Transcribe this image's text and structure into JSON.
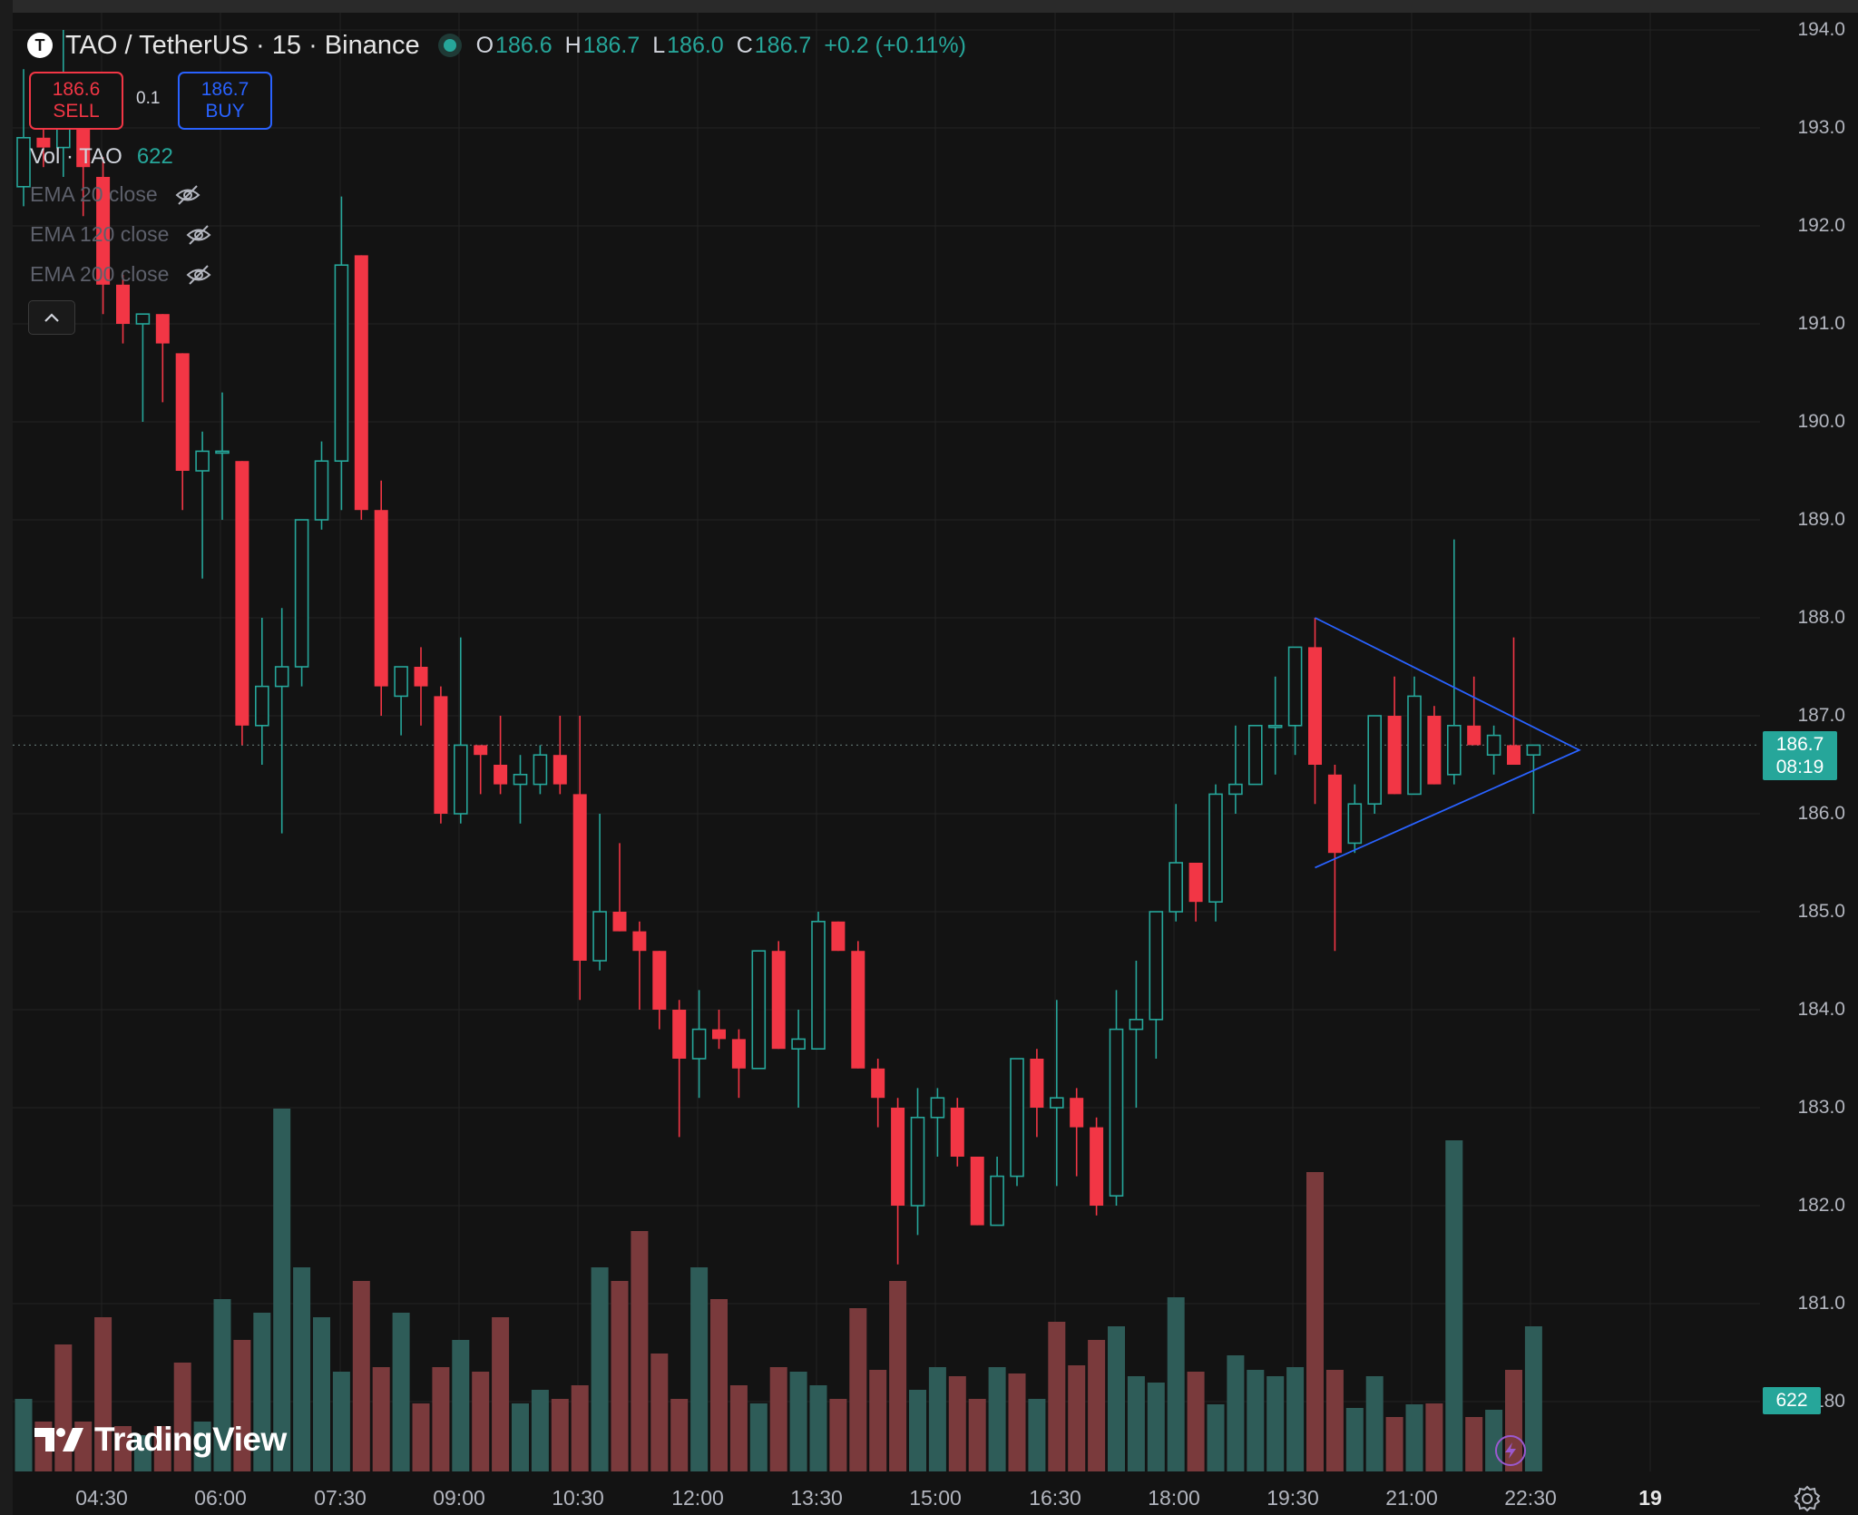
{
  "header": {
    "symbol_badge": "T",
    "symbol": "TAO / TetherUS · 15 · Binance",
    "o_label": "O",
    "o_value": "186.6",
    "h_label": "H",
    "h_value": "186.7",
    "l_label": "L",
    "l_value": "186.0",
    "c_label": "C",
    "c_value": "186.7",
    "change": "+0.2 (+0.11%)"
  },
  "trade": {
    "sell_price": "186.6",
    "sell_label": "SELL",
    "quantity": "0.1",
    "buy_price": "186.7",
    "buy_label": "BUY"
  },
  "legend": {
    "vol_label": "Vol · TAO",
    "vol_value": "622",
    "ema": [
      {
        "label": "EMA 20 close"
      },
      {
        "label": "EMA 120 close"
      },
      {
        "label": "EMA 200 close"
      }
    ]
  },
  "price_tag": {
    "price": "186.7",
    "countdown": "08:19"
  },
  "volume_tag": "622",
  "branding": "TradingView",
  "icons": {
    "symbol": "tao-logo-icon",
    "eye": "eye-crossed-icon",
    "collapse": "chevron-up-icon",
    "bolt": "lightning-icon",
    "settings": "gear-icon"
  },
  "colors": {
    "up": "#26a69a",
    "down": "#f23645",
    "drawing": "#2962ff",
    "background": "#131313"
  },
  "chart_data": {
    "type": "candlestick",
    "interval": "15",
    "y_ticks": [
      "194.0",
      "193.0",
      "192.0",
      "191.0",
      "190.0",
      "189.0",
      "188.0",
      "187.0",
      "186.0",
      "185.0",
      "184.0",
      "183.0",
      "182.0",
      "181.0",
      "180"
    ],
    "x_ticks": [
      "04:30",
      "06:00",
      "07:30",
      "09:00",
      "10:30",
      "12:00",
      "13:30",
      "15:00",
      "16:30",
      "18:00",
      "19:30",
      "21:00",
      "22:30",
      "19"
    ],
    "ylim": [
      179.8,
      194.3
    ],
    "last_price": 186.7,
    "candles": [
      {
        "o": 192.4,
        "h": 193.6,
        "l": 192.2,
        "c": 192.9
      },
      {
        "o": 192.9,
        "h": 193.3,
        "l": 192.6,
        "c": 192.8
      },
      {
        "o": 192.8,
        "h": 194.0,
        "l": 192.5,
        "c": 193.1
      },
      {
        "o": 193.1,
        "h": 193.3,
        "l": 192.1,
        "c": 192.6
      },
      {
        "o": 192.5,
        "h": 192.7,
        "l": 191.1,
        "c": 191.4
      },
      {
        "o": 191.4,
        "h": 191.5,
        "l": 190.8,
        "c": 191.0
      },
      {
        "o": 191.0,
        "h": 191.1,
        "l": 190.0,
        "c": 191.1
      },
      {
        "o": 191.1,
        "h": 191.1,
        "l": 190.2,
        "c": 190.8
      },
      {
        "o": 190.7,
        "h": 190.7,
        "l": 189.1,
        "c": 189.5
      },
      {
        "o": 189.5,
        "h": 189.9,
        "l": 188.4,
        "c": 189.7
      },
      {
        "o": 189.7,
        "h": 190.3,
        "l": 189.0,
        "c": 189.7
      },
      {
        "o": 189.6,
        "h": 189.6,
        "l": 186.7,
        "c": 186.9
      },
      {
        "o": 186.9,
        "h": 188.0,
        "l": 186.5,
        "c": 187.3
      },
      {
        "o": 187.3,
        "h": 188.1,
        "l": 185.8,
        "c": 187.5
      },
      {
        "o": 187.5,
        "h": 189.0,
        "l": 187.3,
        "c": 189.0
      },
      {
        "o": 189.0,
        "h": 189.8,
        "l": 188.9,
        "c": 189.6
      },
      {
        "o": 189.6,
        "h": 192.3,
        "l": 189.1,
        "c": 191.6
      },
      {
        "o": 191.7,
        "h": 191.7,
        "l": 189.0,
        "c": 189.1
      },
      {
        "o": 189.1,
        "h": 189.4,
        "l": 187.0,
        "c": 187.3
      },
      {
        "o": 187.2,
        "h": 187.4,
        "l": 186.8,
        "c": 187.5
      },
      {
        "o": 187.5,
        "h": 187.7,
        "l": 186.9,
        "c": 187.3
      },
      {
        "o": 187.2,
        "h": 187.3,
        "l": 185.9,
        "c": 186.0
      },
      {
        "o": 186.0,
        "h": 187.8,
        "l": 185.9,
        "c": 186.7
      },
      {
        "o": 186.7,
        "h": 186.7,
        "l": 186.2,
        "c": 186.6
      },
      {
        "o": 186.5,
        "h": 187.0,
        "l": 186.2,
        "c": 186.3
      },
      {
        "o": 186.3,
        "h": 186.6,
        "l": 185.9,
        "c": 186.4
      },
      {
        "o": 186.3,
        "h": 186.7,
        "l": 186.2,
        "c": 186.6
      },
      {
        "o": 186.6,
        "h": 187.0,
        "l": 186.2,
        "c": 186.3
      },
      {
        "o": 186.2,
        "h": 187.0,
        "l": 184.1,
        "c": 184.5
      },
      {
        "o": 184.5,
        "h": 186.0,
        "l": 184.4,
        "c": 185.0
      },
      {
        "o": 185.0,
        "h": 185.7,
        "l": 184.8,
        "c": 184.8
      },
      {
        "o": 184.8,
        "h": 184.9,
        "l": 184.0,
        "c": 184.6
      },
      {
        "o": 184.6,
        "h": 184.6,
        "l": 183.8,
        "c": 184.0
      },
      {
        "o": 184.0,
        "h": 184.1,
        "l": 182.7,
        "c": 183.5
      },
      {
        "o": 183.5,
        "h": 184.2,
        "l": 183.1,
        "c": 183.8
      },
      {
        "o": 183.8,
        "h": 184.0,
        "l": 183.6,
        "c": 183.7
      },
      {
        "o": 183.7,
        "h": 183.8,
        "l": 183.1,
        "c": 183.4
      },
      {
        "o": 183.4,
        "h": 184.6,
        "l": 183.4,
        "c": 184.6
      },
      {
        "o": 184.6,
        "h": 184.7,
        "l": 183.6,
        "c": 183.6
      },
      {
        "o": 183.6,
        "h": 184.0,
        "l": 183.0,
        "c": 183.7
      },
      {
        "o": 183.6,
        "h": 185.0,
        "l": 183.6,
        "c": 184.9
      },
      {
        "o": 184.9,
        "h": 184.9,
        "l": 184.6,
        "c": 184.6
      },
      {
        "o": 184.6,
        "h": 184.7,
        "l": 183.4,
        "c": 183.4
      },
      {
        "o": 183.4,
        "h": 183.5,
        "l": 182.8,
        "c": 183.1
      },
      {
        "o": 183.0,
        "h": 183.1,
        "l": 181.4,
        "c": 182.0
      },
      {
        "o": 182.0,
        "h": 183.2,
        "l": 181.7,
        "c": 182.9
      },
      {
        "o": 182.9,
        "h": 183.2,
        "l": 182.5,
        "c": 183.1
      },
      {
        "o": 183.0,
        "h": 183.1,
        "l": 182.4,
        "c": 182.5
      },
      {
        "o": 182.5,
        "h": 182.5,
        "l": 181.8,
        "c": 181.8
      },
      {
        "o": 181.8,
        "h": 182.5,
        "l": 181.8,
        "c": 182.3
      },
      {
        "o": 182.3,
        "h": 183.5,
        "l": 182.2,
        "c": 183.5
      },
      {
        "o": 183.5,
        "h": 183.6,
        "l": 182.7,
        "c": 183.0
      },
      {
        "o": 183.0,
        "h": 184.1,
        "l": 182.2,
        "c": 183.1
      },
      {
        "o": 183.1,
        "h": 183.2,
        "l": 182.3,
        "c": 182.8
      },
      {
        "o": 182.8,
        "h": 182.9,
        "l": 181.9,
        "c": 182.0
      },
      {
        "o": 182.1,
        "h": 184.2,
        "l": 182.0,
        "c": 183.8
      },
      {
        "o": 183.8,
        "h": 184.5,
        "l": 183.0,
        "c": 183.9
      },
      {
        "o": 183.9,
        "h": 185.0,
        "l": 183.5,
        "c": 185.0
      },
      {
        "o": 185.0,
        "h": 186.1,
        "l": 184.9,
        "c": 185.5
      },
      {
        "o": 185.5,
        "h": 185.5,
        "l": 184.9,
        "c": 185.1
      },
      {
        "o": 185.1,
        "h": 186.3,
        "l": 184.9,
        "c": 186.2
      },
      {
        "o": 186.2,
        "h": 186.9,
        "l": 186.0,
        "c": 186.3
      },
      {
        "o": 186.3,
        "h": 186.9,
        "l": 186.3,
        "c": 186.9
      },
      {
        "o": 186.9,
        "h": 187.4,
        "l": 186.4,
        "c": 186.9
      },
      {
        "o": 186.9,
        "h": 187.7,
        "l": 186.6,
        "c": 187.7
      },
      {
        "o": 187.7,
        "h": 188.0,
        "l": 186.1,
        "c": 186.5
      },
      {
        "o": 186.4,
        "h": 186.5,
        "l": 184.6,
        "c": 185.6
      },
      {
        "o": 185.7,
        "h": 186.3,
        "l": 185.6,
        "c": 186.1
      },
      {
        "o": 186.1,
        "h": 187.0,
        "l": 186.0,
        "c": 187.0
      },
      {
        "o": 187.0,
        "h": 187.4,
        "l": 186.2,
        "c": 186.2
      },
      {
        "o": 186.2,
        "h": 187.4,
        "l": 186.2,
        "c": 187.2
      },
      {
        "o": 187.0,
        "h": 187.1,
        "l": 186.3,
        "c": 186.3
      },
      {
        "o": 186.4,
        "h": 188.8,
        "l": 186.3,
        "c": 186.9
      },
      {
        "o": 186.9,
        "h": 187.4,
        "l": 186.7,
        "c": 186.7
      },
      {
        "o": 186.6,
        "h": 186.9,
        "l": 186.4,
        "c": 186.8
      },
      {
        "o": 186.7,
        "h": 187.8,
        "l": 186.5,
        "c": 186.5
      },
      {
        "o": 186.6,
        "h": 186.7,
        "l": 186.0,
        "c": 186.7
      }
    ],
    "volume_ylim": [
      0,
      400
    ],
    "volumes": [
      80,
      55,
      140,
      55,
      170,
      50,
      40,
      50,
      120,
      55,
      190,
      145,
      175,
      400,
      225,
      170,
      110,
      210,
      115,
      175,
      75,
      115,
      145,
      110,
      170,
      75,
      90,
      80,
      95,
      225,
      210,
      265,
      130,
      80,
      225,
      190,
      95,
      75,
      115,
      110,
      95,
      80,
      180,
      112,
      210,
      90,
      115,
      105,
      80,
      115,
      108,
      80,
      165,
      117,
      145,
      160,
      105,
      98,
      192,
      110,
      74,
      128,
      112,
      105,
      115,
      330,
      112,
      70,
      105,
      60,
      74,
      75,
      365,
      60,
      68,
      112,
      160
    ],
    "volume_up": [
      true,
      false,
      false,
      false,
      false,
      false,
      true,
      false,
      false,
      true,
      true,
      false,
      true,
      true,
      true,
      true,
      true,
      false,
      false,
      true,
      false,
      false,
      true,
      false,
      false,
      true,
      true,
      false,
      false,
      true,
      false,
      false,
      false,
      false,
      true,
      false,
      false,
      true,
      false,
      true,
      true,
      false,
      false,
      false,
      false,
      true,
      true,
      false,
      false,
      true,
      false,
      true,
      false,
      false,
      false,
      true,
      true,
      true,
      true,
      false,
      true,
      true,
      true,
      true,
      true,
      false,
      false,
      true,
      true,
      false,
      true,
      false,
      true,
      false,
      true,
      false,
      true
    ],
    "drawing": {
      "type": "triangle",
      "points": [
        {
          "candle": 65,
          "price": 188.0
        },
        {
          "candle": 78.3,
          "price": 186.65
        },
        {
          "candle": 65,
          "price": 185.45
        }
      ]
    }
  }
}
